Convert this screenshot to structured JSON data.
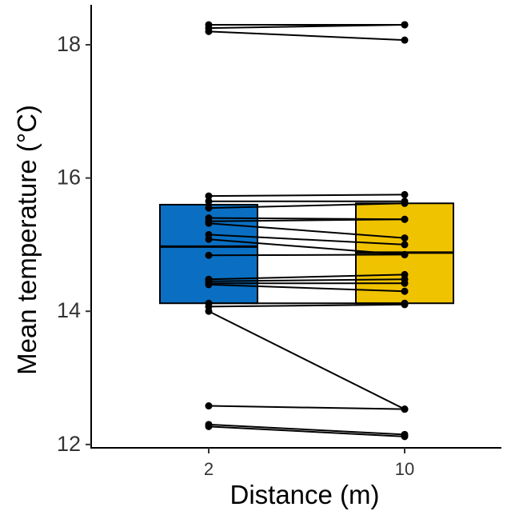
{
  "chart_data": {
    "type": "box",
    "xlabel": "Distance (m)",
    "ylabel": "Mean temperature (°C)",
    "categories": [
      "2",
      "10"
    ],
    "category_colors": [
      "#0a6fc2",
      "#f0c300"
    ],
    "ylim": [
      11.95,
      18.6
    ],
    "yticks": [
      12,
      14,
      16,
      18
    ],
    "grid": false,
    "legend": "none",
    "boxes": [
      {
        "category": "2",
        "q1": 14.12,
        "median": 14.97,
        "q3": 15.6
      },
      {
        "category": "10",
        "q1": 14.12,
        "median": 14.88,
        "q3": 15.62
      }
    ],
    "paired_points": [
      {
        "at_2": 18.3,
        "at_10": 18.3
      },
      {
        "at_2": 18.25,
        "at_10": 18.3
      },
      {
        "at_2": 18.2,
        "at_10": 18.07
      },
      {
        "at_2": 15.73,
        "at_10": 15.75
      },
      {
        "at_2": 15.65,
        "at_10": 15.65
      },
      {
        "at_2": 15.55,
        "at_10": 15.62
      },
      {
        "at_2": 15.4,
        "at_10": 15.38
      },
      {
        "at_2": 15.35,
        "at_10": 15.38
      },
      {
        "at_2": 15.32,
        "at_10": 15.1
      },
      {
        "at_2": 15.15,
        "at_10": 15.0
      },
      {
        "at_2": 15.08,
        "at_10": 14.85
      },
      {
        "at_2": 14.84,
        "at_10": 14.85
      },
      {
        "at_2": 14.48,
        "at_10": 14.55
      },
      {
        "at_2": 14.45,
        "at_10": 14.48
      },
      {
        "at_2": 14.42,
        "at_10": 14.42
      },
      {
        "at_2": 14.4,
        "at_10": 14.3
      },
      {
        "at_2": 14.12,
        "at_10": 14.12
      },
      {
        "at_2": 14.07,
        "at_10": 14.1
      },
      {
        "at_2": 14.0,
        "at_10": 12.53
      },
      {
        "at_2": 12.58,
        "at_10": 12.53
      },
      {
        "at_2": 12.3,
        "at_10": 12.15
      },
      {
        "at_2": 12.27,
        "at_10": 12.12
      }
    ]
  }
}
